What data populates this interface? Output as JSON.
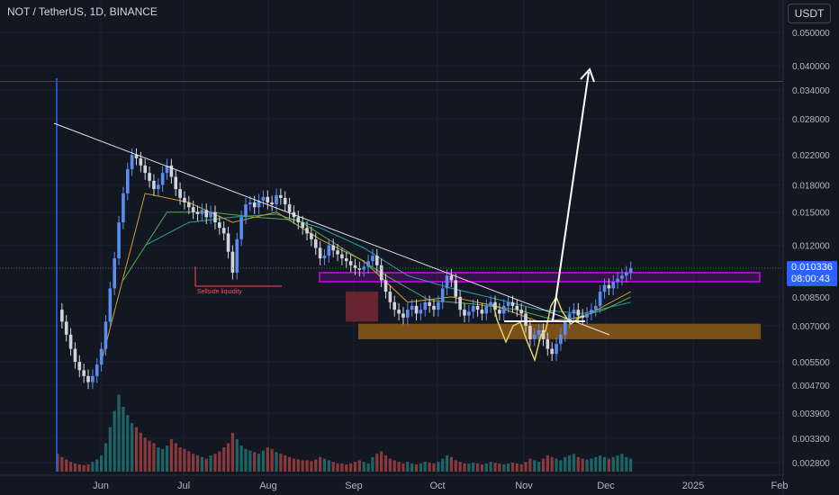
{
  "header": {
    "symbol_line": "NOT / TetherUS, 1D, BINANCE"
  },
  "currency_button": {
    "label": "USDT"
  },
  "last_price": {
    "value": "0.010336",
    "countdown": "08:00:43"
  },
  "colors": {
    "background": "#131722",
    "up": "#26a69a",
    "down": "#ef5350",
    "candle_up": "#5b8def",
    "candle_down": "#d1d4dc",
    "magenta_box": "#d500f9",
    "orange_zone": "#8d5a17",
    "red_zone": "#8b2a36",
    "ema_fast": "#c9a227",
    "ema_mid": "#26a69a",
    "ema_slow": "#4caf50",
    "pattern": "#ffffff"
  },
  "annotations": {
    "liquidity_label": "Sellside liquidity"
  },
  "chart_data": {
    "type": "candlestick",
    "scale": "log",
    "symbol": "NOT / TetherUS",
    "timeframe": "1D",
    "exchange": "BINANCE",
    "y_ticks": [
      "0.050000",
      "0.040000",
      "0.034000",
      "0.028000",
      "0.022000",
      "0.018000",
      "0.015000",
      "0.012000",
      "0.008500",
      "0.007000",
      "0.005500",
      "0.004700",
      "0.003900",
      "0.003300",
      "0.002800"
    ],
    "x_ticks": [
      "Jun",
      "Jul",
      "Aug",
      "Sep",
      "Oct",
      "Nov",
      "Dec",
      "2025",
      "Feb"
    ],
    "ylim": [
      0.0026,
      0.058
    ],
    "last_price": 0.010336,
    "price_path": [
      [
        0,
        0.0078
      ],
      [
        1,
        0.0072
      ],
      [
        2,
        0.0066
      ],
      [
        3,
        0.006
      ],
      [
        4,
        0.0055
      ],
      [
        5,
        0.0052
      ],
      [
        6,
        0.005
      ],
      [
        7,
        0.0048
      ],
      [
        8,
        0.005
      ],
      [
        9,
        0.0054
      ],
      [
        10,
        0.006
      ],
      [
        11,
        0.0072
      ],
      [
        12,
        0.009
      ],
      [
        13,
        0.011
      ],
      [
        14,
        0.014
      ],
      [
        15,
        0.017
      ],
      [
        16,
        0.02
      ],
      [
        17,
        0.022
      ],
      [
        18,
        0.0215
      ],
      [
        19,
        0.0205
      ],
      [
        20,
        0.0195
      ],
      [
        21,
        0.0185
      ],
      [
        22,
        0.0175
      ],
      [
        23,
        0.018
      ],
      [
        24,
        0.0195
      ],
      [
        25,
        0.0205
      ],
      [
        26,
        0.019
      ],
      [
        27,
        0.0175
      ],
      [
        28,
        0.0165
      ],
      [
        29,
        0.016
      ],
      [
        30,
        0.0155
      ],
      [
        31,
        0.015
      ],
      [
        32,
        0.0148
      ],
      [
        33,
        0.0152
      ],
      [
        34,
        0.0145
      ],
      [
        35,
        0.015
      ],
      [
        36,
        0.014
      ],
      [
        37,
        0.0135
      ],
      [
        38,
        0.013
      ],
      [
        39,
        0.0115
      ],
      [
        40,
        0.01
      ],
      [
        41,
        0.0125
      ],
      [
        42,
        0.0145
      ],
      [
        43,
        0.0158
      ],
      [
        44,
        0.016
      ],
      [
        45,
        0.0155
      ],
      [
        46,
        0.0162
      ],
      [
        47,
        0.0166
      ],
      [
        48,
        0.016
      ],
      [
        49,
        0.0158
      ],
      [
        50,
        0.0168
      ],
      [
        51,
        0.0165
      ],
      [
        52,
        0.0158
      ],
      [
        53,
        0.015
      ],
      [
        54,
        0.0145
      ],
      [
        55,
        0.014
      ],
      [
        56,
        0.0135
      ],
      [
        57,
        0.013
      ],
      [
        58,
        0.0125
      ],
      [
        59,
        0.0118
      ],
      [
        60,
        0.011
      ],
      [
        61,
        0.0112
      ],
      [
        62,
        0.012
      ],
      [
        63,
        0.0116
      ],
      [
        64,
        0.0113
      ],
      [
        65,
        0.011
      ],
      [
        66,
        0.0108
      ],
      [
        67,
        0.0105
      ],
      [
        68,
        0.0103
      ],
      [
        69,
        0.0102
      ],
      [
        70,
        0.0104
      ],
      [
        71,
        0.0108
      ],
      [
        72,
        0.0112
      ],
      [
        73,
        0.0105
      ],
      [
        74,
        0.0095
      ],
      [
        75,
        0.0088
      ],
      [
        76,
        0.0082
      ],
      [
        77,
        0.0078
      ],
      [
        78,
        0.0076
      ],
      [
        79,
        0.0074
      ],
      [
        80,
        0.0078
      ],
      [
        81,
        0.008
      ],
      [
        82,
        0.0076
      ],
      [
        83,
        0.0078
      ],
      [
        84,
        0.0082
      ],
      [
        85,
        0.008
      ],
      [
        86,
        0.0078
      ],
      [
        87,
        0.0082
      ],
      [
        88,
        0.009
      ],
      [
        89,
        0.0098
      ],
      [
        90,
        0.0095
      ],
      [
        91,
        0.0085
      ],
      [
        92,
        0.0078
      ],
      [
        93,
        0.0075
      ],
      [
        94,
        0.0077
      ],
      [
        95,
        0.008
      ],
      [
        96,
        0.0078
      ],
      [
        97,
        0.0076
      ],
      [
        98,
        0.008
      ],
      [
        99,
        0.0082
      ],
      [
        100,
        0.0078
      ],
      [
        101,
        0.0076
      ],
      [
        102,
        0.008
      ],
      [
        103,
        0.0082
      ],
      [
        104,
        0.008
      ],
      [
        105,
        0.0078
      ],
      [
        106,
        0.0076
      ],
      [
        107,
        0.007
      ],
      [
        108,
        0.0064
      ],
      [
        109,
        0.0066
      ],
      [
        110,
        0.0068
      ],
      [
        111,
        0.0064
      ],
      [
        112,
        0.006
      ],
      [
        113,
        0.0058
      ],
      [
        114,
        0.0062
      ],
      [
        115,
        0.0066
      ],
      [
        116,
        0.0072
      ],
      [
        117,
        0.0076
      ],
      [
        118,
        0.0078
      ],
      [
        119,
        0.0075
      ],
      [
        120,
        0.0074
      ],
      [
        121,
        0.0076
      ],
      [
        122,
        0.0078
      ],
      [
        123,
        0.008
      ],
      [
        124,
        0.0088
      ],
      [
        125,
        0.0092
      ],
      [
        126,
        0.009
      ],
      [
        127,
        0.0094
      ],
      [
        128,
        0.0096
      ],
      [
        129,
        0.0098
      ],
      [
        130,
        0.01
      ],
      [
        131,
        0.0103
      ]
    ],
    "ema_fast": [
      [
        10,
        0.0055
      ],
      [
        20,
        0.017
      ],
      [
        30,
        0.016
      ],
      [
        40,
        0.014
      ],
      [
        50,
        0.015
      ],
      [
        60,
        0.0125
      ],
      [
        70,
        0.0108
      ],
      [
        80,
        0.0082
      ],
      [
        90,
        0.0085
      ],
      [
        100,
        0.008
      ],
      [
        110,
        0.0072
      ],
      [
        120,
        0.0074
      ],
      [
        131,
        0.0088
      ]
    ],
    "ema_mid": [
      [
        15,
        0.0095
      ],
      [
        25,
        0.015
      ],
      [
        35,
        0.015
      ],
      [
        45,
        0.0145
      ],
      [
        55,
        0.0142
      ],
      [
        65,
        0.0118
      ],
      [
        75,
        0.0098
      ],
      [
        85,
        0.0083
      ],
      [
        95,
        0.0081
      ],
      [
        105,
        0.0078
      ],
      [
        115,
        0.0072
      ],
      [
        125,
        0.0078
      ],
      [
        131,
        0.0085
      ]
    ],
    "ema_slow": [
      [
        20,
        0.012
      ],
      [
        30,
        0.014
      ],
      [
        40,
        0.0145
      ],
      [
        50,
        0.0148
      ],
      [
        60,
        0.0135
      ],
      [
        70,
        0.0118
      ],
      [
        80,
        0.0098
      ],
      [
        90,
        0.009
      ],
      [
        100,
        0.0084
      ],
      [
        110,
        0.0078
      ],
      [
        120,
        0.0076
      ],
      [
        131,
        0.0082
      ]
    ],
    "trendline": [
      [
        -3,
        0.027
      ],
      [
        116,
        0.0066
      ]
    ],
    "magenta_box": {
      "x": [
        56,
        152
      ],
      "y": [
        0.0095,
        0.01
      ]
    },
    "orange_zone": {
      "x": [
        64,
        152
      ],
      "y": [
        0.0064,
        0.0071
      ]
    },
    "red_zone": {
      "x": [
        61,
        68
      ],
      "y": [
        0.0072,
        0.0088
      ]
    },
    "liquidity_line": {
      "x": [
        30,
        49
      ],
      "y": 0.0092
    },
    "neckline": {
      "x": [
        96,
        114
      ],
      "y": 0.0071
    },
    "target_arrow": {
      "from": [
        108,
        0.0075
      ],
      "to": [
        118,
        0.04
      ]
    },
    "horizontal_level": 0.036,
    "volume": [
      22,
      18,
      15,
      12,
      10,
      9,
      8,
      9,
      12,
      15,
      20,
      35,
      55,
      75,
      95,
      80,
      70,
      60,
      55,
      48,
      42,
      38,
      35,
      30,
      28,
      32,
      40,
      35,
      30,
      28,
      25,
      22,
      20,
      18,
      16,
      20,
      22,
      25,
      30,
      35,
      48,
      40,
      32,
      28,
      26,
      24,
      22,
      26,
      30,
      28,
      24,
      22,
      20,
      18,
      16,
      15,
      14,
      14,
      13,
      15,
      18,
      16,
      14,
      12,
      10,
      10,
      9,
      10,
      12,
      14,
      12,
      10,
      18,
      22,
      25,
      20,
      16,
      14,
      12,
      10,
      12,
      10,
      9,
      10,
      12,
      11,
      10,
      12,
      16,
      20,
      18,
      14,
      12,
      10,
      10,
      11,
      10,
      9,
      10,
      12,
      11,
      10,
      9,
      10,
      11,
      10,
      9,
      12,
      16,
      14,
      12,
      16,
      20,
      18,
      16,
      14,
      18,
      20,
      22,
      18,
      16,
      15,
      16,
      18,
      20,
      18,
      16,
      18,
      20,
      22,
      18,
      16
    ]
  }
}
